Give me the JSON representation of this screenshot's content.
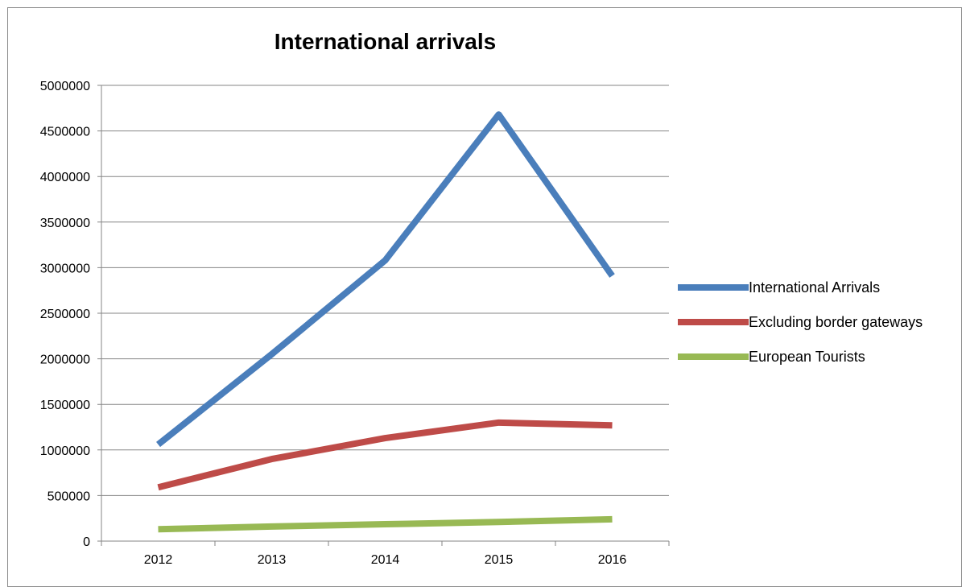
{
  "chart_data": {
    "type": "line",
    "title": "International arrivals",
    "xlabel": "",
    "ylabel": "",
    "categories": [
      "2012",
      "2013",
      "2014",
      "2015",
      "2016"
    ],
    "ylim": [
      0,
      5000000
    ],
    "yticks": [
      0,
      500000,
      1000000,
      1500000,
      2000000,
      2500000,
      3000000,
      3500000,
      4000000,
      4500000,
      5000000
    ],
    "ytick_labels": [
      "0",
      "500000",
      "1000000",
      "1500000",
      "2000000",
      "2500000",
      "3000000",
      "3500000",
      "4000000",
      "4500000",
      "5000000"
    ],
    "grid": "horizontal",
    "legend_position": "right",
    "series": [
      {
        "name": "International Arrivals",
        "color": "#4a7ebb",
        "values": [
          1060000,
          2050000,
          3080000,
          4680000,
          2910000
        ]
      },
      {
        "name": "Excluding border gateways",
        "color": "#be4b48",
        "values": [
          590000,
          900000,
          1130000,
          1300000,
          1270000
        ]
      },
      {
        "name": "European Tourists",
        "color": "#98b954",
        "values": [
          130000,
          160000,
          185000,
          210000,
          240000
        ]
      }
    ]
  }
}
